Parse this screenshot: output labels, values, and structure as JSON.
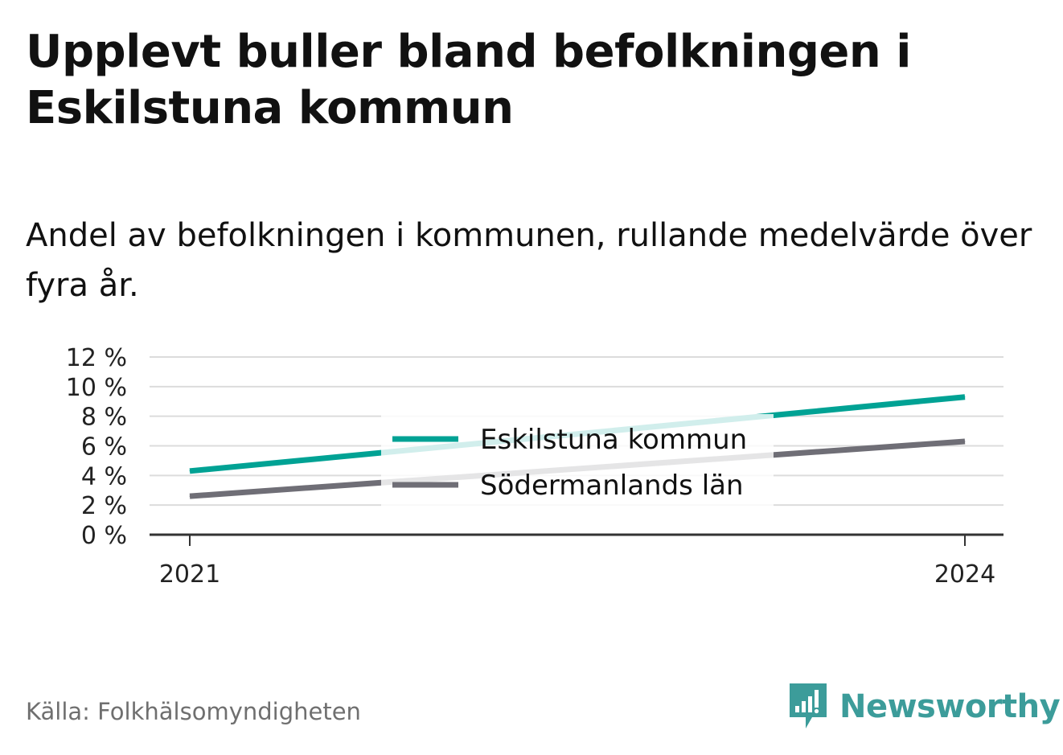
{
  "title": "Upplevt buller bland befolkningen i Eskilstuna kommun",
  "subtitle": "Andel av befolkningen i kommunen, rullande medelvärde över fyra år.",
  "source": "Källa: Folkhälsomyndigheten",
  "brand": {
    "name": "Newsworthy",
    "logo_icon": "newsworthy-logo-icon",
    "color": "#3c9c9a"
  },
  "chart_data": {
    "type": "line",
    "x": [
      2021,
      2024
    ],
    "x_tick_labels": [
      "2021",
      "2024"
    ],
    "y_ticks": [
      0,
      2,
      4,
      6,
      8,
      10,
      12
    ],
    "y_tick_labels": [
      "0 %",
      "2 %",
      "4 %",
      "6 %",
      "8 %",
      "10 %",
      "12 %"
    ],
    "ylim": [
      0,
      12
    ],
    "grid": true,
    "legend_position": "center",
    "series": [
      {
        "name": "Eskilstuna kommun",
        "values": [
          4.3,
          9.3
        ],
        "color": "#00a294"
      },
      {
        "name": "Södermanlands län",
        "values": [
          2.6,
          6.3
        ],
        "color": "#6f6e76"
      }
    ]
  }
}
